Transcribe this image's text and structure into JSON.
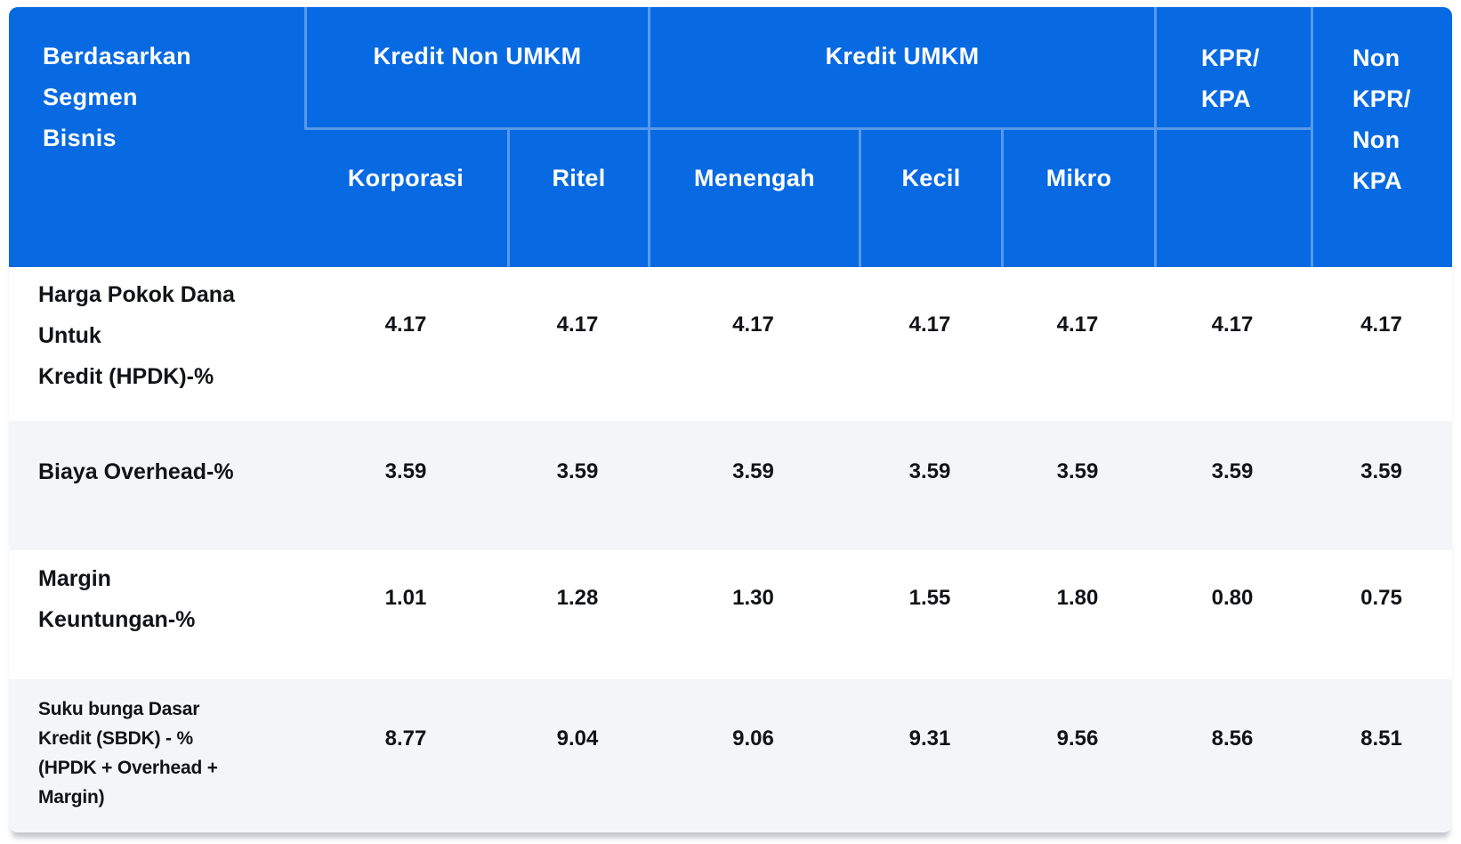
{
  "table": {
    "title_cell": "Berdasarkan\nSegmen\nBisnis",
    "header": {
      "group_kredit_non_umkm": "Kredit Non UMKM",
      "group_kredit_umkm": "Kredit UMKM",
      "col_kpr_kpa": "KPR/\nKPA",
      "col_non_kpr_non_kpa": "Non\nKPR/\nNon\nKPA",
      "sub_korporasi": "Korporasi",
      "sub_ritel": "Ritel",
      "sub_menengah": "Menengah",
      "sub_kecil": "Kecil",
      "sub_mikro": "Mikro"
    },
    "rows": [
      {
        "label": "Harga Pokok Dana\nUntuk\nKredit (HPDK)-%",
        "values": [
          "4.17",
          "4.17",
          "4.17",
          "4.17",
          "4.17",
          "4.17",
          "4.17"
        ]
      },
      {
        "label": "Biaya Overhead-%",
        "values": [
          "3.59",
          "3.59",
          "3.59",
          "3.59",
          "3.59",
          "3.59",
          "3.59"
        ]
      },
      {
        "label": "Margin\nKeuntungan-%",
        "values": [
          "1.01",
          "1.28",
          "1.30",
          "1.55",
          "1.80",
          "0.80",
          "0.75"
        ]
      },
      {
        "label": "Suku bunga Dasar\nKredit (SBDK) - %\n(HPDK + Overhead +\nMargin)",
        "values": [
          "8.77",
          "9.04",
          "9.06",
          "9.31",
          "9.56",
          "8.56",
          "8.51"
        ]
      }
    ],
    "colors": {
      "header_bg": "#086ae2",
      "header_divider": "#4f93ea",
      "header_text": "#ffffff",
      "row_alt_bg": "#f3f5f8",
      "body_text": "#111318"
    }
  }
}
